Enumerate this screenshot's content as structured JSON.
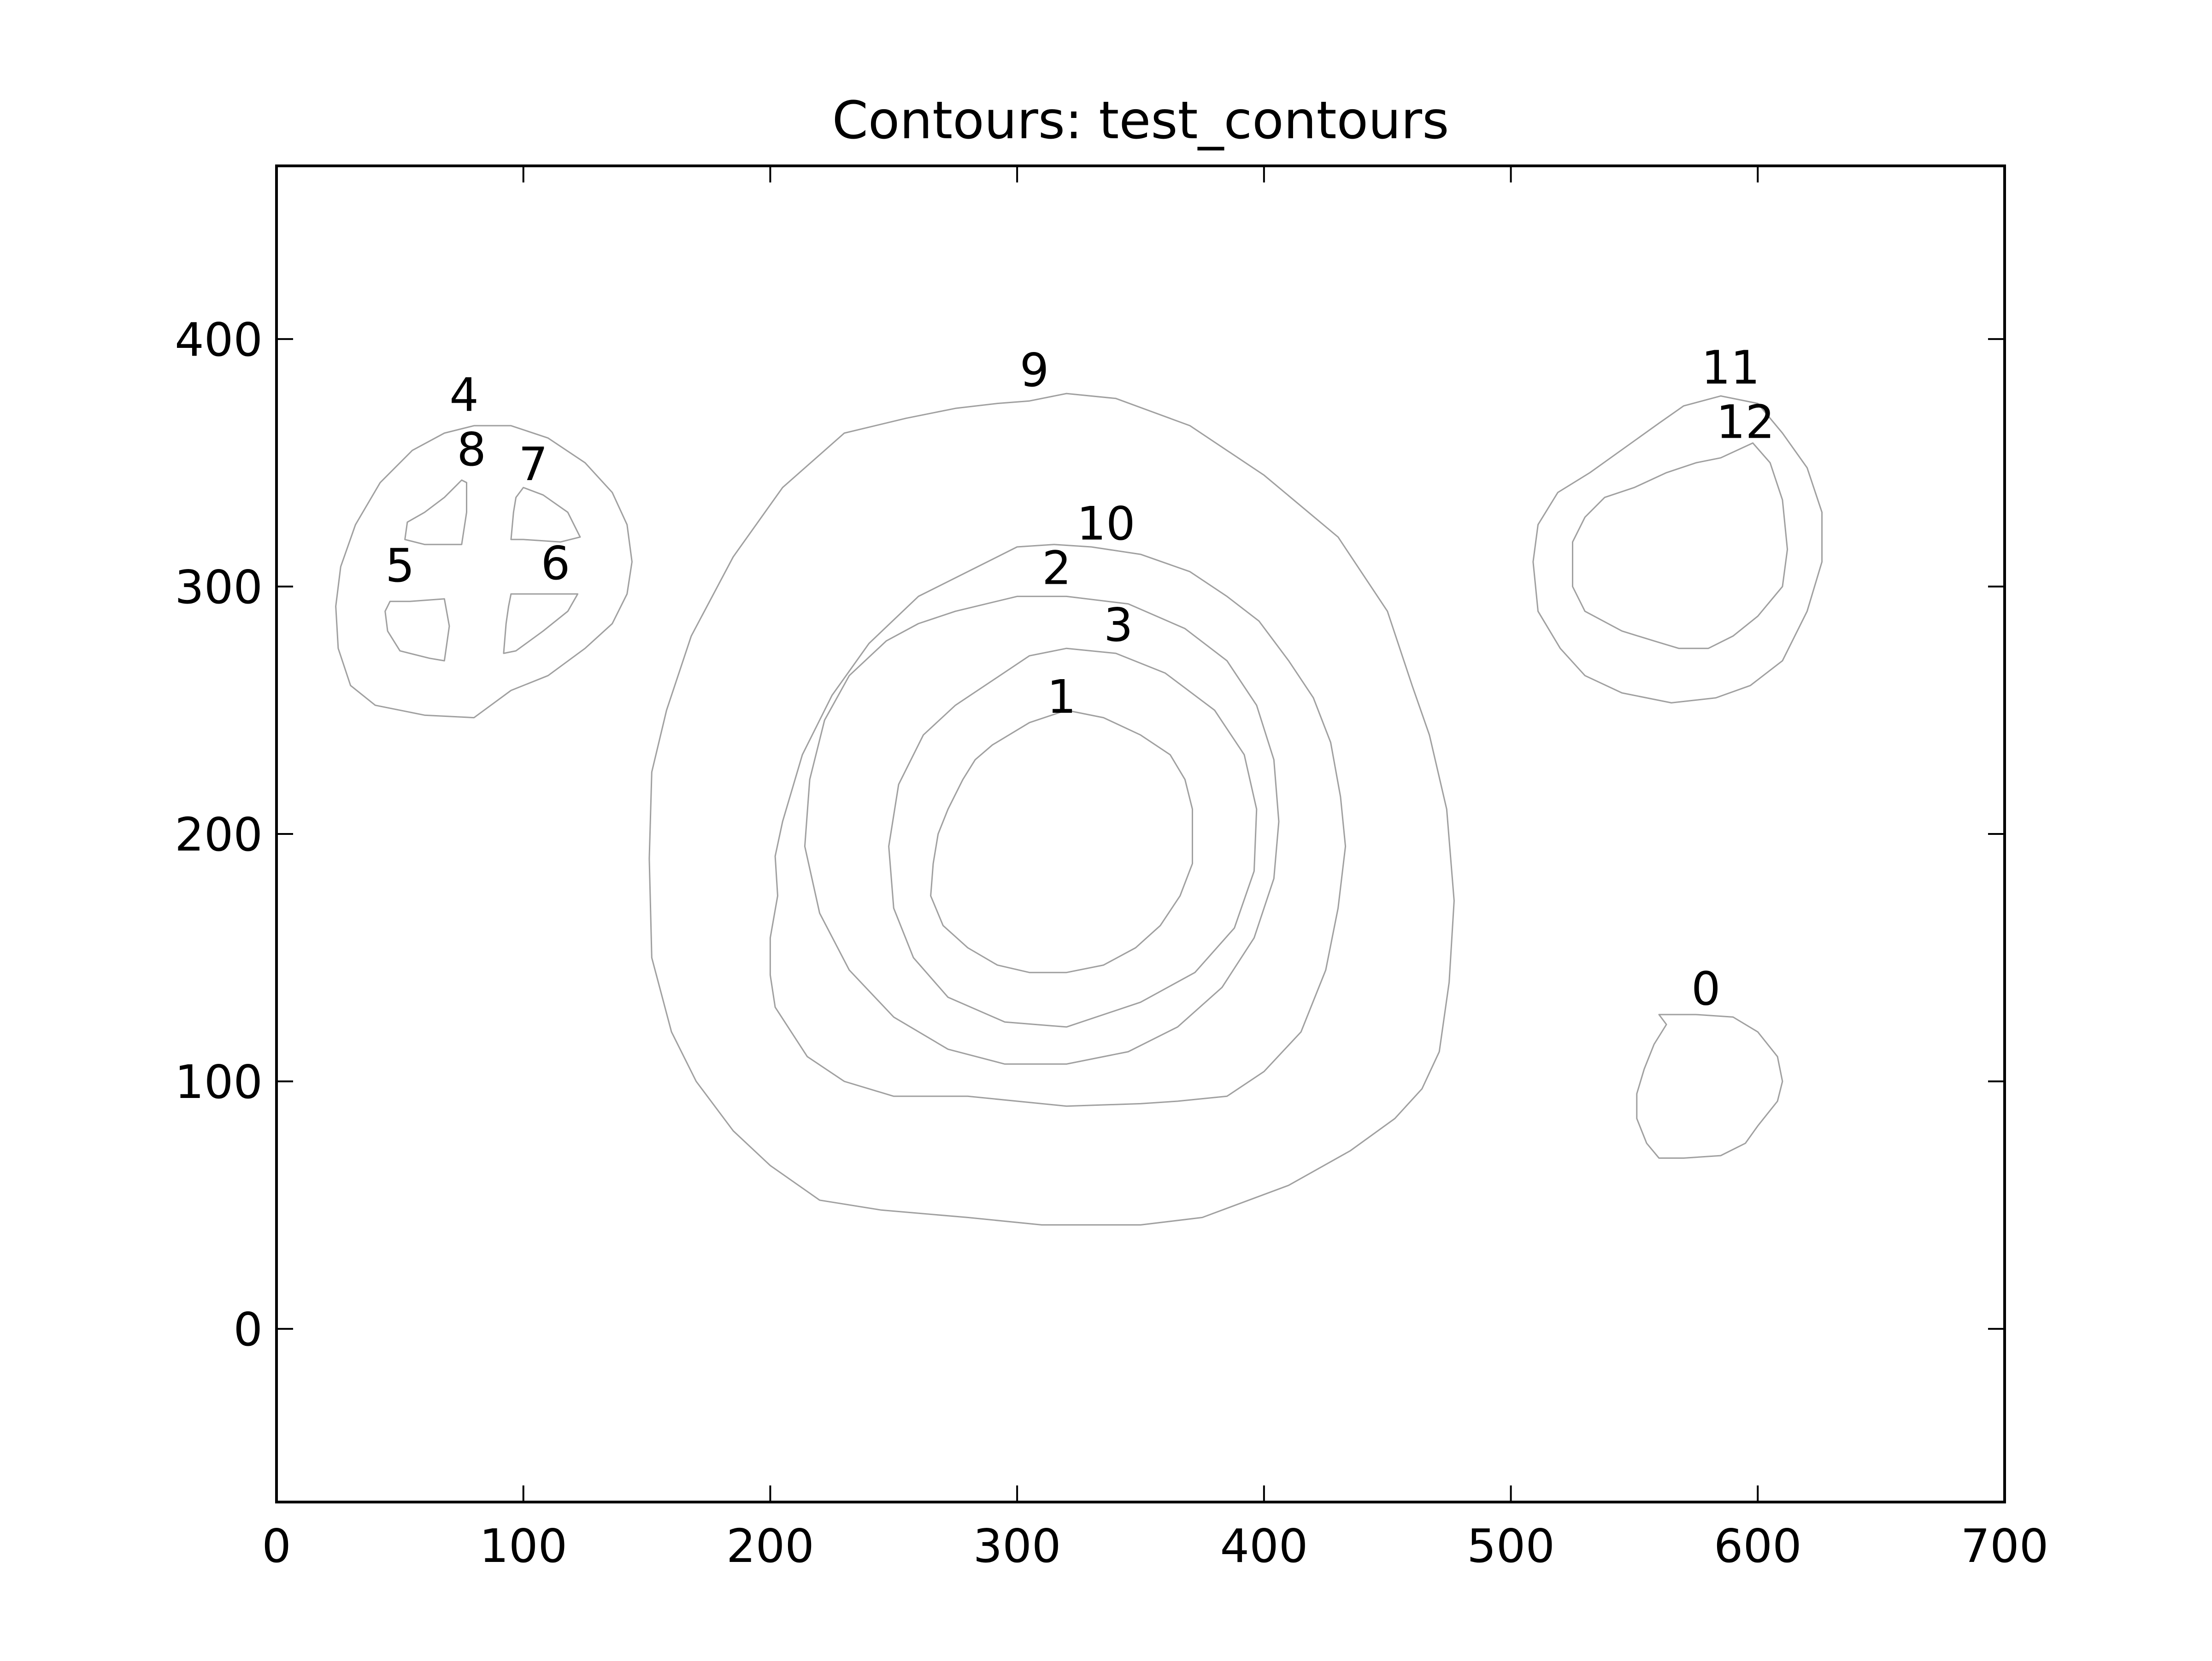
{
  "chart_data": {
    "type": "contour",
    "title": "Contours: test_contours",
    "xlabel": "",
    "ylabel": "",
    "xlim": [
      0,
      700
    ],
    "ylim": [
      -70,
      470
    ],
    "xticks": [
      0,
      100,
      200,
      300,
      400,
      500,
      600,
      700
    ],
    "yticks": [
      0,
      100,
      200,
      300,
      400
    ],
    "grid": false,
    "line_color": "#a0a0a0",
    "contours": [
      {
        "label": "0",
        "label_at": [
          579,
          131
        ],
        "points": [
          [
            560,
            127
          ],
          [
            575,
            127
          ],
          [
            590,
            126
          ],
          [
            600,
            120
          ],
          [
            608,
            110
          ],
          [
            610,
            100
          ],
          [
            608,
            92
          ],
          [
            600,
            82
          ],
          [
            595,
            75
          ],
          [
            585,
            70
          ],
          [
            570,
            69
          ],
          [
            560,
            69
          ],
          [
            555,
            75
          ],
          [
            551,
            85
          ],
          [
            551,
            95
          ],
          [
            554,
            105
          ],
          [
            558,
            115
          ],
          [
            563,
            123
          ]
        ]
      },
      {
        "label": "1",
        "label_at": [
          318,
          249
        ],
        "points": [
          [
            290,
            236
          ],
          [
            305,
            245
          ],
          [
            320,
            250
          ],
          [
            335,
            247
          ],
          [
            350,
            240
          ],
          [
            362,
            232
          ],
          [
            368,
            222
          ],
          [
            371,
            210
          ],
          [
            371,
            188
          ],
          [
            366,
            175
          ],
          [
            358,
            163
          ],
          [
            348,
            154
          ],
          [
            335,
            147
          ],
          [
            320,
            144
          ],
          [
            305,
            144
          ],
          [
            292,
            147
          ],
          [
            280,
            154
          ],
          [
            270,
            163
          ],
          [
            265,
            175
          ],
          [
            266,
            188
          ],
          [
            268,
            200
          ],
          [
            272,
            210
          ],
          [
            278,
            222
          ],
          [
            283,
            230
          ]
        ]
      },
      {
        "label": "2",
        "label_at": [
          316,
          301
        ],
        "points": [
          [
            260,
            285
          ],
          [
            275,
            290
          ],
          [
            300,
            296
          ],
          [
            320,
            296
          ],
          [
            345,
            293
          ],
          [
            368,
            283
          ],
          [
            385,
            270
          ],
          [
            397,
            252
          ],
          [
            404,
            230
          ],
          [
            406,
            205
          ],
          [
            404,
            182
          ],
          [
            396,
            158
          ],
          [
            383,
            138
          ],
          [
            365,
            122
          ],
          [
            345,
            112
          ],
          [
            320,
            107
          ],
          [
            295,
            107
          ],
          [
            272,
            113
          ],
          [
            250,
            126
          ],
          [
            232,
            145
          ],
          [
            220,
            168
          ],
          [
            214,
            195
          ],
          [
            216,
            222
          ],
          [
            222,
            246
          ],
          [
            232,
            264
          ],
          [
            247,
            278
          ]
        ]
      },
      {
        "label": "3",
        "label_at": [
          341,
          278
        ],
        "points": [
          [
            290,
            262
          ],
          [
            305,
            272
          ],
          [
            320,
            275
          ],
          [
            340,
            273
          ],
          [
            360,
            265
          ],
          [
            380,
            250
          ],
          [
            392,
            232
          ],
          [
            397,
            210
          ],
          [
            396,
            185
          ],
          [
            388,
            162
          ],
          [
            372,
            144
          ],
          [
            350,
            132
          ],
          [
            320,
            122
          ],
          [
            295,
            124
          ],
          [
            272,
            134
          ],
          [
            258,
            150
          ],
          [
            250,
            170
          ],
          [
            248,
            195
          ],
          [
            252,
            220
          ],
          [
            262,
            240
          ],
          [
            275,
            252
          ]
        ]
      },
      {
        "label": "4",
        "label_at": [
          76,
          371
        ],
        "points": [
          [
            80,
            365
          ],
          [
            95,
            365
          ],
          [
            110,
            360
          ],
          [
            125,
            350
          ],
          [
            136,
            338
          ],
          [
            142,
            325
          ],
          [
            144,
            310
          ],
          [
            142,
            297
          ],
          [
            136,
            285
          ],
          [
            125,
            275
          ],
          [
            110,
            264
          ],
          [
            95,
            258
          ],
          [
            80,
            247
          ],
          [
            60,
            248
          ],
          [
            40,
            252
          ],
          [
            30,
            260
          ],
          [
            25,
            275
          ],
          [
            24,
            292
          ],
          [
            26,
            308
          ],
          [
            32,
            325
          ],
          [
            42,
            342
          ],
          [
            55,
            355
          ],
          [
            68,
            362
          ]
        ]
      },
      {
        "label": "5",
        "label_at": [
          50,
          302
        ],
        "points": [
          [
            46,
            294
          ],
          [
            54,
            294
          ],
          [
            68,
            295
          ],
          [
            70,
            284
          ],
          [
            68,
            270
          ],
          [
            62,
            271
          ],
          [
            50,
            274
          ],
          [
            45,
            282
          ],
          [
            44,
            290
          ]
        ]
      },
      {
        "label": "6",
        "label_at": [
          113,
          303
        ],
        "points": [
          [
            95,
            297
          ],
          [
            110,
            297
          ],
          [
            122,
            297
          ],
          [
            118,
            290
          ],
          [
            108,
            282
          ],
          [
            97,
            274
          ],
          [
            92,
            273
          ],
          [
            93,
            285
          ],
          [
            94,
            292
          ]
        ]
      },
      {
        "label": "7",
        "label_at": [
          104,
          343
        ],
        "points": [
          [
            100,
            340
          ],
          [
            108,
            337
          ],
          [
            118,
            330
          ],
          [
            123,
            320
          ],
          [
            115,
            318
          ],
          [
            100,
            319
          ],
          [
            95,
            319
          ],
          [
            96,
            330
          ],
          [
            97,
            336
          ]
        ]
      },
      {
        "label": "8",
        "label_at": [
          79,
          349
        ],
        "points": [
          [
            75,
            343
          ],
          [
            77,
            342
          ],
          [
            77,
            330
          ],
          [
            75,
            317
          ],
          [
            60,
            317
          ],
          [
            52,
            319
          ],
          [
            53,
            326
          ],
          [
            60,
            330
          ],
          [
            68,
            336
          ],
          [
            73,
            341
          ]
        ]
      },
      {
        "label": "9",
        "label_at": [
          307,
          381
        ],
        "points": [
          [
            305,
            375
          ],
          [
            320,
            378
          ],
          [
            340,
            376
          ],
          [
            370,
            365
          ],
          [
            400,
            345
          ],
          [
            430,
            320
          ],
          [
            450,
            290
          ],
          [
            460,
            260
          ],
          [
            467,
            240
          ],
          [
            474,
            210
          ],
          [
            477,
            173
          ],
          [
            475,
            140
          ],
          [
            471,
            112
          ],
          [
            464,
            97
          ],
          [
            453,
            85
          ],
          [
            435,
            72
          ],
          [
            410,
            58
          ],
          [
            375,
            45
          ],
          [
            350,
            42
          ],
          [
            310,
            42
          ],
          [
            280,
            45
          ],
          [
            245,
            48
          ],
          [
            220,
            52
          ],
          [
            200,
            66
          ],
          [
            185,
            80
          ],
          [
            170,
            100
          ],
          [
            160,
            120
          ],
          [
            152,
            150
          ],
          [
            151,
            190
          ],
          [
            152,
            225
          ],
          [
            158,
            250
          ],
          [
            168,
            280
          ],
          [
            185,
            312
          ],
          [
            205,
            340
          ],
          [
            230,
            362
          ],
          [
            255,
            368
          ],
          [
            275,
            372
          ],
          [
            292,
            374
          ]
        ]
      },
      {
        "label": "10",
        "label_at": [
          336,
          319
        ],
        "points": [
          [
            300,
            316
          ],
          [
            315,
            317
          ],
          [
            330,
            316
          ],
          [
            350,
            313
          ],
          [
            370,
            306
          ],
          [
            385,
            296
          ],
          [
            398,
            286
          ],
          [
            410,
            270
          ],
          [
            420,
            255
          ],
          [
            427,
            237
          ],
          [
            431,
            215
          ],
          [
            433,
            195
          ],
          [
            430,
            170
          ],
          [
            425,
            145
          ],
          [
            415,
            120
          ],
          [
            400,
            104
          ],
          [
            385,
            94
          ],
          [
            365,
            92
          ],
          [
            350,
            91
          ],
          [
            320,
            90
          ],
          [
            280,
            94
          ],
          [
            250,
            94
          ],
          [
            230,
            100
          ],
          [
            215,
            110
          ],
          [
            202,
            130
          ],
          [
            200,
            143
          ],
          [
            200,
            158
          ],
          [
            203,
            175
          ],
          [
            202,
            191
          ],
          [
            205,
            205
          ],
          [
            213,
            232
          ],
          [
            225,
            256
          ],
          [
            240,
            277
          ],
          [
            260,
            296
          ],
          [
            282,
            307
          ]
        ]
      },
      {
        "label": "11",
        "label_at": [
          589,
          382
        ],
        "points": [
          [
            570,
            373
          ],
          [
            585,
            377
          ],
          [
            600,
            374
          ],
          [
            610,
            362
          ],
          [
            620,
            348
          ],
          [
            626,
            330
          ],
          [
            626,
            310
          ],
          [
            620,
            290
          ],
          [
            610,
            270
          ],
          [
            597,
            260
          ],
          [
            583,
            255
          ],
          [
            565,
            253
          ],
          [
            545,
            257
          ],
          [
            530,
            264
          ],
          [
            520,
            275
          ],
          [
            511,
            290
          ],
          [
            509,
            310
          ],
          [
            511,
            325
          ],
          [
            519,
            338
          ],
          [
            532,
            346
          ],
          [
            546,
            356
          ],
          [
            560,
            366
          ]
        ]
      },
      {
        "label": "12",
        "label_at": [
          595,
          360
        ],
        "points": [
          [
            585,
            352
          ],
          [
            598,
            358
          ],
          [
            605,
            350
          ],
          [
            610,
            335
          ],
          [
            612,
            315
          ],
          [
            610,
            300
          ],
          [
            600,
            288
          ],
          [
            590,
            280
          ],
          [
            580,
            275
          ],
          [
            568,
            275
          ],
          [
            558,
            278
          ],
          [
            545,
            282
          ],
          [
            530,
            290
          ],
          [
            525,
            300
          ],
          [
            525,
            318
          ],
          [
            530,
            328
          ],
          [
            538,
            336
          ],
          [
            550,
            340
          ],
          [
            563,
            346
          ],
          [
            575,
            350
          ]
        ]
      }
    ]
  }
}
